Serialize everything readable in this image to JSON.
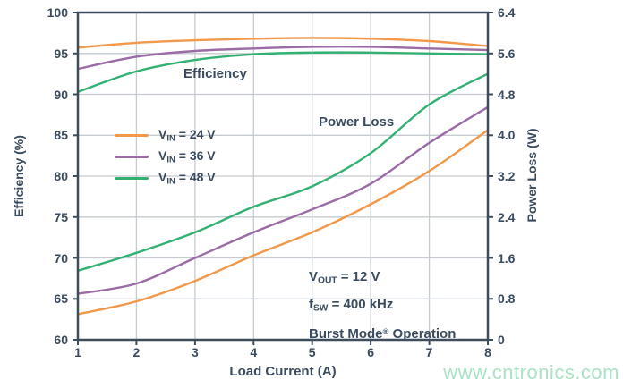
{
  "page": {
    "background": "#ffffff",
    "watermark": {
      "text": "www.cntronics.com",
      "color": "#abe2c4"
    }
  },
  "style": {
    "text_color": "#3a4b5f",
    "frame_color": "#3e4d5c",
    "grid_color": "#c6cbd1"
  },
  "chart_data": {
    "type": "line",
    "title": "",
    "xlabel": "Load Current (A)",
    "xlim": [
      1,
      8
    ],
    "x": [
      1,
      2,
      3,
      4,
      5,
      6,
      7,
      8
    ],
    "x_ticks": [
      "1",
      "2",
      "3",
      "4",
      "5",
      "6",
      "7",
      "8"
    ],
    "x_tick_values": [
      1,
      2,
      3,
      4,
      5,
      6,
      7,
      8
    ],
    "grid": true,
    "legend_position": "upper-left-inside",
    "left_axis": {
      "label": "Efficiency (%)",
      "lim": [
        60,
        100
      ],
      "ticks": [
        "100",
        "95",
        "90",
        "85",
        "80",
        "75",
        "70",
        "65",
        "60"
      ],
      "tick_values": [
        100,
        95,
        90,
        85,
        80,
        75,
        70,
        65,
        60
      ]
    },
    "right_axis": {
      "label": "Power Loss (W)",
      "lim": [
        0,
        6.4
      ],
      "ticks": [
        "6.4",
        "5.6",
        "4.8",
        "4.0",
        "3.2",
        "2.4",
        "1.6",
        "0.8",
        "0"
      ],
      "tick_values": [
        6.4,
        5.6,
        4.8,
        4.0,
        3.2,
        2.4,
        1.6,
        0.8,
        0
      ]
    },
    "group_labels": {
      "efficiency": "Efficiency",
      "power_loss": "Power Loss"
    },
    "series": [
      {
        "name": "VIN = 24 V Efficiency",
        "quantity": "efficiency",
        "axis": "left",
        "color": "#f2984b",
        "values": [
          95.7,
          96.3,
          96.6,
          96.8,
          96.9,
          96.8,
          96.5,
          95.9
        ]
      },
      {
        "name": "VIN = 36 V Efficiency",
        "quantity": "efficiency",
        "axis": "left",
        "color": "#9a6ba4",
        "values": [
          93.1,
          94.6,
          95.3,
          95.6,
          95.8,
          95.8,
          95.6,
          95.4
        ]
      },
      {
        "name": "VIN = 48 V Efficiency",
        "quantity": "efficiency",
        "axis": "left",
        "color": "#33b173",
        "values": [
          90.3,
          92.8,
          94.2,
          94.9,
          95.1,
          95.1,
          95.0,
          94.9
        ]
      },
      {
        "name": "VIN = 24 V Power Loss",
        "quantity": "power_loss",
        "axis": "right",
        "color": "#f2984b",
        "values": [
          0.5,
          0.75,
          1.15,
          1.65,
          2.1,
          2.65,
          3.3,
          4.1
        ]
      },
      {
        "name": "VIN = 36 V Power Loss",
        "quantity": "power_loss",
        "axis": "right",
        "color": "#9a6ba4",
        "values": [
          0.9,
          1.1,
          1.6,
          2.1,
          2.55,
          3.05,
          3.85,
          4.55
        ]
      },
      {
        "name": "VIN = 48 V Power Loss",
        "quantity": "power_loss",
        "axis": "right",
        "color": "#33b173",
        "values": [
          1.35,
          1.7,
          2.1,
          2.6,
          3.0,
          3.65,
          4.6,
          5.2
        ]
      }
    ],
    "legend": {
      "items": [
        {
          "pre": "V",
          "sub": "IN",
          "post": " = 24 V",
          "color": "#f2984b"
        },
        {
          "pre": "V",
          "sub": "IN",
          "post": " = 36 V",
          "color": "#9a6ba4"
        },
        {
          "pre": "V",
          "sub": "IN",
          "post": " = 48 V",
          "color": "#33b173"
        }
      ]
    },
    "annotations": [
      {
        "pre": "V",
        "sub": "OUT",
        "post": " = 12 V"
      },
      {
        "pre": "f",
        "sub": "SW",
        "post": " = 400 kHz"
      },
      {
        "pre": "Burst Mode",
        "sup": "®",
        "post": " Operation"
      }
    ]
  }
}
